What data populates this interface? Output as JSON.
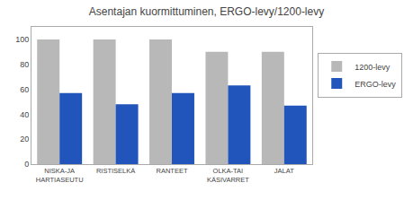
{
  "chart_data": {
    "type": "bar",
    "title": "Asentajan kuormittuminen, ERGO-levy/1200-levy",
    "categories": [
      "NISKA-JA\nHARTIASEUTU",
      "RISTISELKÄ",
      "RANTEET",
      "OLKA-TAI\nKÄSIVARRET",
      "JALAT"
    ],
    "series": [
      {
        "name": "1200-levy",
        "color": "#b8b8b8",
        "values": [
          100,
          100,
          100,
          90,
          90
        ]
      },
      {
        "name": "ERGO-levy",
        "color": "#2255bb",
        "values": [
          57,
          48,
          57,
          63,
          47
        ]
      }
    ],
    "ylim": [
      0,
      110
    ],
    "yticks": [
      0,
      20,
      40,
      60,
      80,
      100
    ],
    "grid": false,
    "legend": "right"
  }
}
